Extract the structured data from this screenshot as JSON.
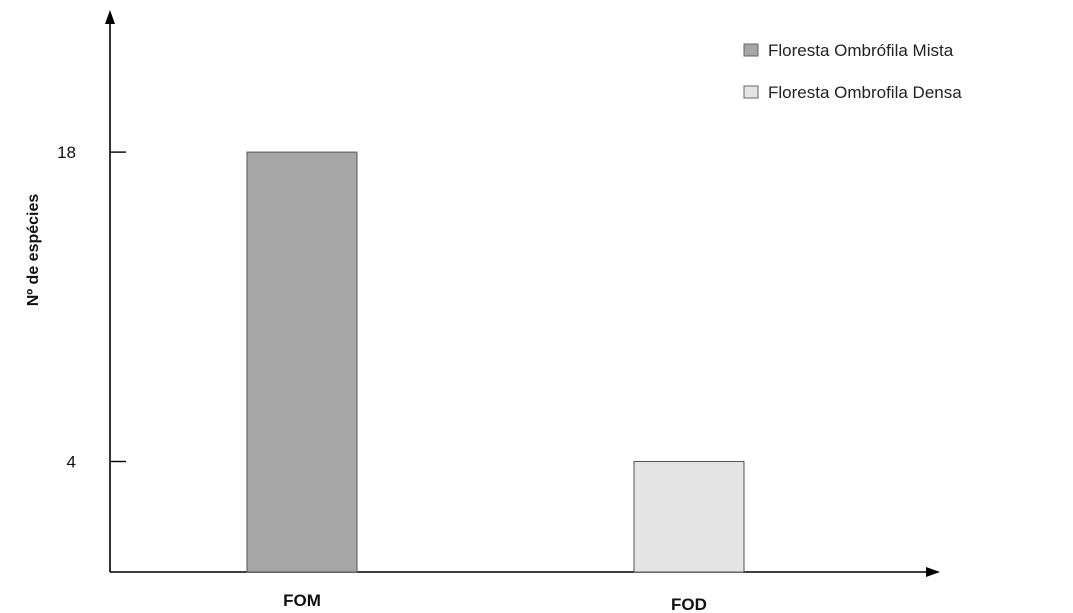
{
  "chart_data": {
    "type": "bar",
    "categories": [
      "FOM",
      "FOD"
    ],
    "values": [
      18,
      4
    ],
    "ylabel": "Nº de espécies",
    "xlabel": "",
    "yticks": [
      18,
      4
    ],
    "ylim": [
      -1,
      24
    ],
    "grid": false,
    "legend": {
      "placement": "top-right",
      "entries": [
        "Floresta Ombrófila Mista",
        "Floresta Ombrofila Densa"
      ]
    },
    "bar_colors": [
      "#a6a6a6",
      "#e4e4e4"
    ]
  }
}
